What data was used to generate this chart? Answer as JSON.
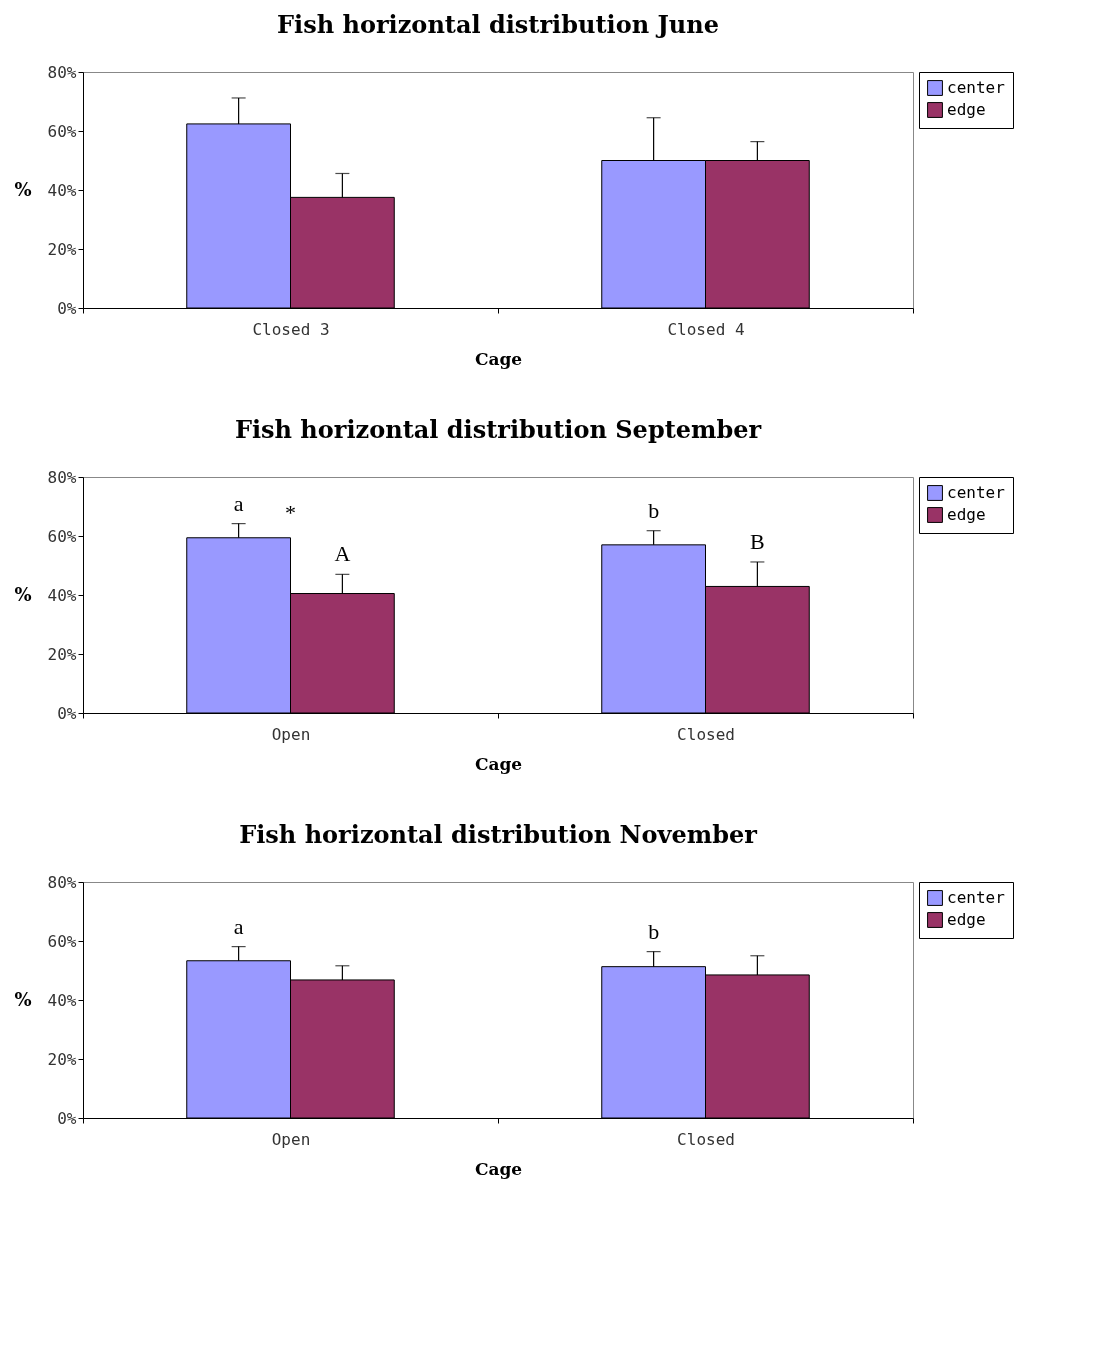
{
  "chart_data": [
    {
      "type": "bar",
      "title": "Fish horizontal distribution June",
      "xlabel": "Cage",
      "ylabel": "%",
      "categories": [
        "Closed 3",
        "Closed 4"
      ],
      "ylim": [
        0,
        80
      ],
      "yticks": [
        {
          "value": 0,
          "label": "0%"
        },
        {
          "value": 20,
          "label": "20%"
        },
        {
          "value": 40,
          "label": "40%"
        },
        {
          "value": 60,
          "label": "60%"
        },
        {
          "value": 80,
          "label": "80%"
        }
      ],
      "grid": false,
      "legend": "right",
      "series": [
        {
          "name": "center",
          "color": "#9999ff",
          "values": [
            62.4,
            50.0
          ],
          "errors": [
            [
              62.4,
              71.2
            ],
            [
              50.0,
              64.5
            ]
          ]
        },
        {
          "name": "edge",
          "color": "#993366",
          "values": [
            37.5,
            50.0
          ],
          "errors": [
            [
              37.5,
              45.6
            ],
            [
              50.0,
              56.4
            ]
          ]
        }
      ]
    },
    {
      "type": "bar",
      "title": "Fish horizontal distribution September",
      "xlabel": "Cage",
      "ylabel": "%",
      "categories": [
        "Open",
        "Closed"
      ],
      "ylim": [
        0,
        80
      ],
      "yticks": [
        {
          "value": 0,
          "label": "0%"
        },
        {
          "value": 20,
          "label": "20%"
        },
        {
          "value": 40,
          "label": "40%"
        },
        {
          "value": 60,
          "label": "60%"
        },
        {
          "value": 80,
          "label": "80%"
        }
      ],
      "grid": false,
      "legend": "right",
      "series": [
        {
          "name": "center",
          "color": "#9999ff",
          "values": [
            59.4,
            57.0
          ],
          "errors": [
            [
              59.4,
              64.2
            ],
            [
              57.0,
              61.8
            ]
          ],
          "value_labels": [
            "a",
            "b"
          ]
        },
        {
          "name": "edge",
          "color": "#993366",
          "values": [
            40.5,
            42.9
          ],
          "errors": [
            [
              40.5,
              47.0
            ],
            [
              42.9,
              51.2
            ]
          ],
          "value_labels": [
            "A",
            "B"
          ]
        }
      ],
      "annotations": [
        "*"
      ]
    },
    {
      "type": "bar",
      "title": "Fish horizontal distribution November",
      "xlabel": "Cage",
      "ylabel": "%",
      "categories": [
        "Open",
        "Closed"
      ],
      "ylim": [
        0,
        80
      ],
      "yticks": [
        {
          "value": 0,
          "label": "0%"
        },
        {
          "value": 20,
          "label": "20%"
        },
        {
          "value": 40,
          "label": "40%"
        },
        {
          "value": 60,
          "label": "60%"
        },
        {
          "value": 80,
          "label": "80%"
        }
      ],
      "grid": false,
      "legend": "right",
      "series": [
        {
          "name": "center",
          "color": "#9999ff",
          "values": [
            53.3,
            51.3
          ],
          "errors": [
            [
              53.3,
              58.1
            ],
            [
              51.3,
              56.4
            ]
          ],
          "value_labels": [
            "a",
            "b"
          ]
        },
        {
          "name": "edge",
          "color": "#993366",
          "values": [
            46.8,
            48.5
          ],
          "errors": [
            [
              46.8,
              51.6
            ],
            [
              48.5,
              55.0
            ]
          ]
        }
      ]
    }
  ]
}
